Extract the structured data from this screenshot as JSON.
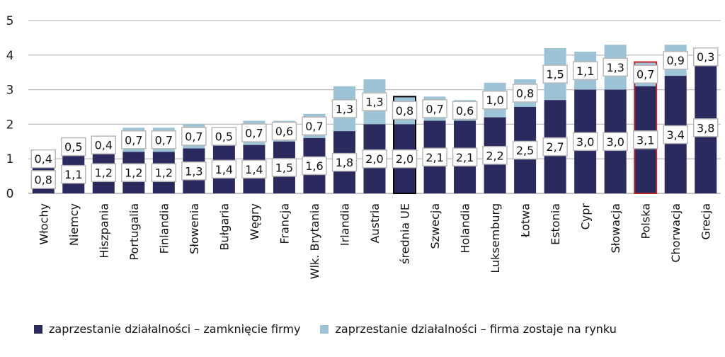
{
  "chart_data": {
    "type": "bar",
    "stacked": true,
    "categories": [
      "Włochy",
      "Niemcy",
      "Hiszpania",
      "Portugalia",
      "Finlandia",
      "Słowenia",
      "Bułgaria",
      "Węgry",
      "Francja",
      "Wlk. Brytania",
      "Irlandia",
      "Austria",
      "średnia UE",
      "Szwecja",
      "Holandia",
      "Luksemburg",
      "Łotwa",
      "Estonia",
      "Cypr",
      "Słowacja",
      "Polska",
      "Chorwacja",
      "Grecja"
    ],
    "series": [
      {
        "name": "zaprzestanie działalności – zamknięcie firmy",
        "color": "#2b2a5e",
        "values": [
          0.8,
          1.1,
          1.2,
          1.2,
          1.2,
          1.3,
          1.4,
          1.4,
          1.5,
          1.6,
          1.8,
          2.0,
          2.0,
          2.1,
          2.1,
          2.2,
          2.5,
          2.7,
          3.0,
          3.0,
          3.1,
          3.4,
          3.8
        ],
        "labels": [
          "0,8",
          "1,1",
          "1,2",
          "1,2",
          "1,2",
          "1,3",
          "1,4",
          "1,4",
          "1,5",
          "1,6",
          "1,8",
          "2,0",
          "2,0",
          "2,1",
          "2,1",
          "2,2",
          "2,5",
          "2,7",
          "3,0",
          "3,0",
          "3,1",
          "3,4",
          "3,8"
        ]
      },
      {
        "name": "zaprzestanie działalności – firma zostaje na rynku",
        "color": "#9dc3d6",
        "values": [
          0.4,
          0.5,
          0.4,
          0.7,
          0.7,
          0.7,
          0.5,
          0.7,
          0.6,
          0.7,
          1.3,
          1.3,
          0.8,
          0.7,
          0.6,
          1.0,
          0.8,
          1.5,
          1.1,
          1.3,
          0.7,
          0.9,
          0.3
        ],
        "labels": [
          "0,4",
          "0,5",
          "0,4",
          "0,7",
          "0,7",
          "0,7",
          "0,5",
          "0,7",
          "0,6",
          "0,7",
          "1,3",
          "1,3",
          "0,8",
          "0,7",
          "0,6",
          "1,0",
          "0,8",
          "1,5",
          "1,1",
          "1,3",
          "0,7",
          "0,9",
          "0,3"
        ]
      }
    ],
    "yticks": [
      "0",
      "1",
      "2",
      "3",
      "4",
      "5"
    ],
    "ylim": [
      0,
      5
    ],
    "grid": true,
    "legend_position": "bottom",
    "highlight": {
      "Polska": "#c0272d",
      "średnia UE": "#000000"
    }
  }
}
